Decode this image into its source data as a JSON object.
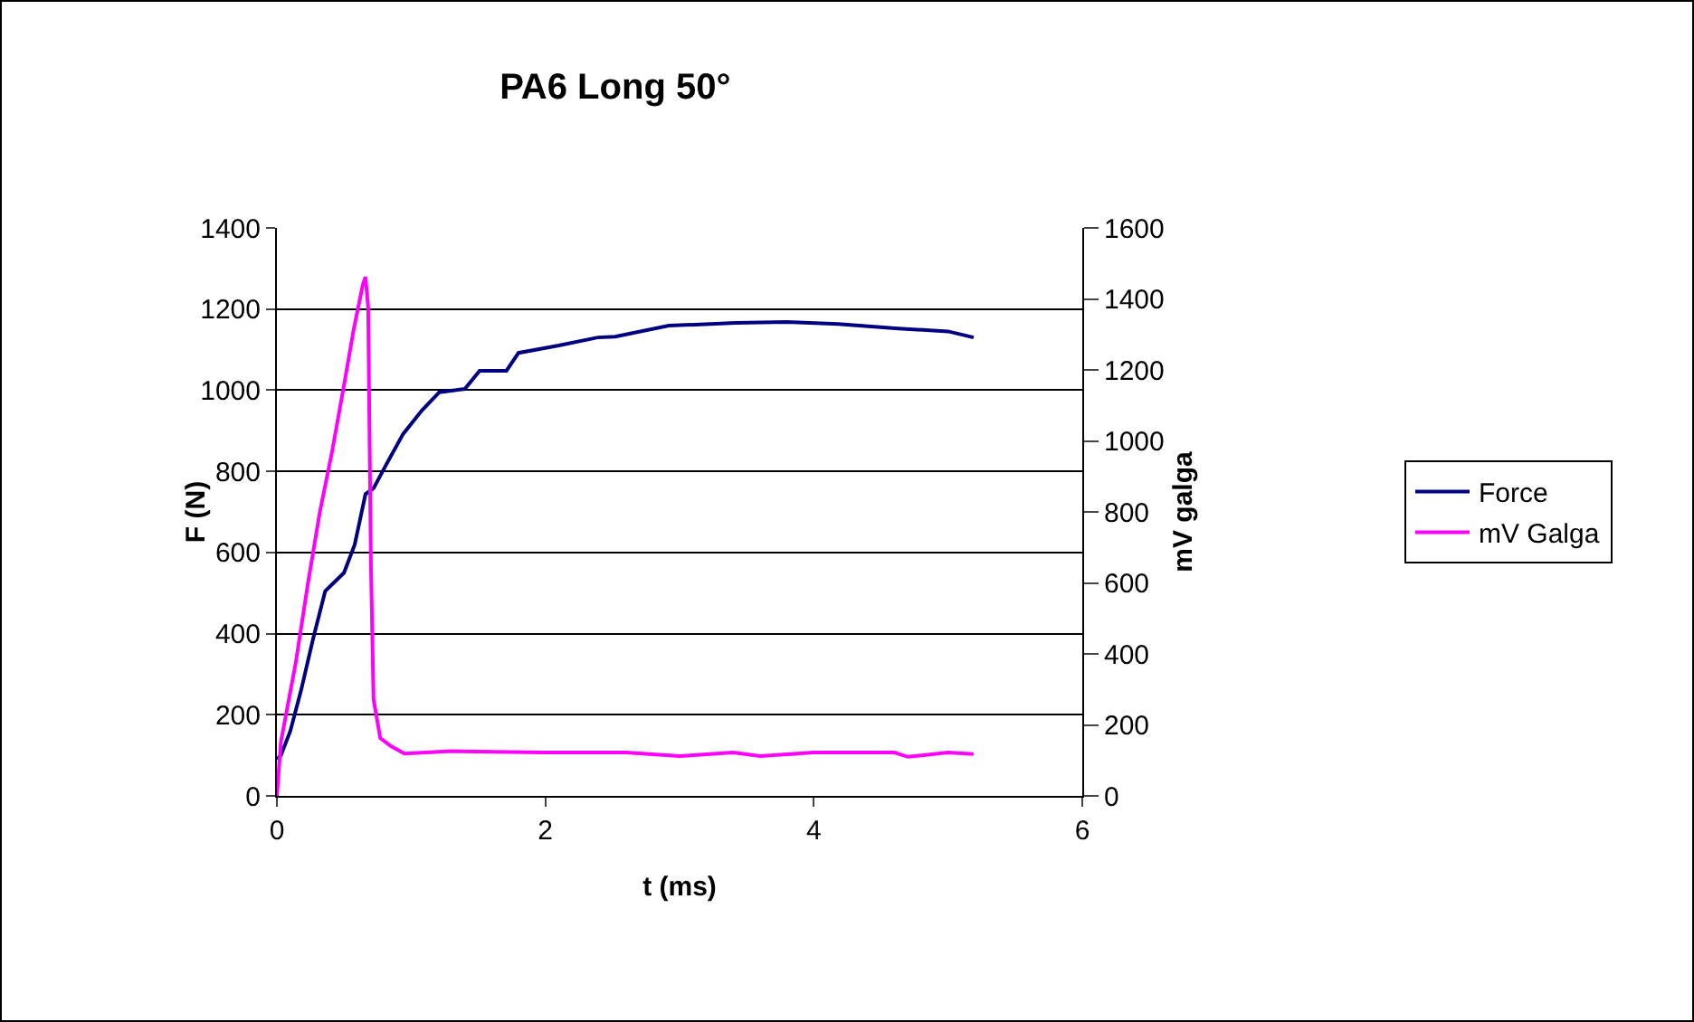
{
  "chart_data": {
    "type": "line",
    "title": "PA6 Long 50°",
    "xlabel": "t (ms)",
    "ylabel": "F (N)",
    "y2label": "mV galga",
    "xlim": [
      0,
      6
    ],
    "xticks": [
      0,
      2,
      4,
      6
    ],
    "ylim": [
      0,
      1400
    ],
    "yticks": [
      0,
      200,
      400,
      600,
      800,
      1000,
      1200,
      1400
    ],
    "y2lim": [
      0,
      1600
    ],
    "y2ticks": [
      0,
      200,
      400,
      600,
      800,
      1000,
      1200,
      1400,
      1600
    ],
    "grid": "y",
    "legend": "right",
    "marker": "none",
    "line_style": "solid",
    "series": [
      {
        "name": "Force",
        "color": "#000080",
        "x": [
          0,
          0.03,
          0.1,
          0.18,
          0.27,
          0.36,
          0.5,
          0.58,
          0.66,
          0.72,
          0.82,
          0.94,
          1.08,
          1.21,
          1.4,
          1.51,
          1.71,
          1.8,
          2.1,
          2.39,
          2.52,
          2.92,
          3.42,
          3.8,
          4.18,
          4.63,
          5.0,
          5.19
        ],
        "values": [
          90,
          100,
          160,
          260,
          388,
          505,
          550,
          620,
          744,
          758,
          820,
          892,
          950,
          995,
          1003,
          1048,
          1048,
          1092,
          1110,
          1130,
          1132,
          1159,
          1166,
          1168,
          1163,
          1152,
          1145,
          1130
        ]
      },
      {
        "name": "mV Galga",
        "color": "#ff00ff",
        "axis": "y2",
        "x": [
          0,
          0.03,
          0.14,
          0.23,
          0.32,
          0.41,
          0.5,
          0.57,
          0.64,
          0.66,
          0.68,
          0.7,
          0.72,
          0.77,
          0.85,
          0.95,
          1.3,
          2.0,
          2.6,
          3.0,
          3.4,
          3.6,
          4.0,
          4.6,
          4.7,
          5.0,
          5.19
        ],
        "values": [
          0,
          153,
          374,
          596,
          800,
          968,
          1157,
          1310,
          1440,
          1462,
          1376,
          662,
          272,
          163,
          140,
          119,
          126,
          122,
          122,
          112,
          122,
          112,
          122,
          122,
          110,
          122,
          118
        ]
      }
    ]
  }
}
